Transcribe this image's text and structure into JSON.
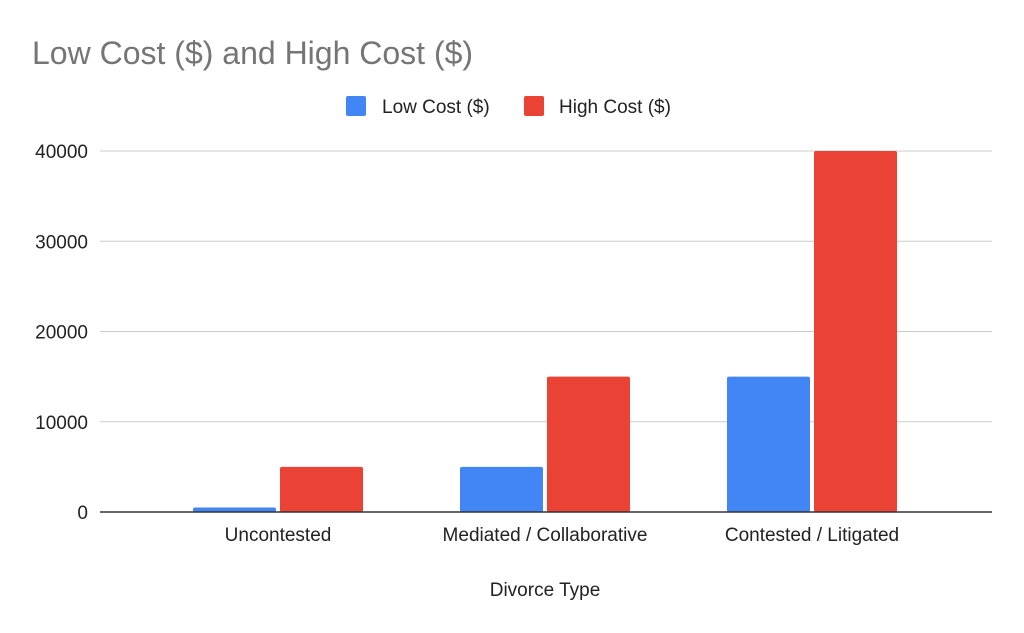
{
  "chart_data": {
    "type": "bar",
    "title": "Low Cost ($) and High Cost ($)",
    "xlabel": "Divorce Type",
    "ylabel": "",
    "categories": [
      "Uncontested",
      "Mediated / Collaborative",
      "Contested / Litigated"
    ],
    "series": [
      {
        "name": "Low Cost ($)",
        "color": "#4285f4",
        "values": [
          500,
          5000,
          15000
        ]
      },
      {
        "name": "High Cost ($)",
        "color": "#ea4335",
        "values": [
          5000,
          15000,
          40000
        ]
      }
    ],
    "ylim": [
      0,
      40000
    ],
    "yticks": [
      "0",
      "10000",
      "20000",
      "30000",
      "40000"
    ],
    "grid": true,
    "legend": "top-center"
  }
}
